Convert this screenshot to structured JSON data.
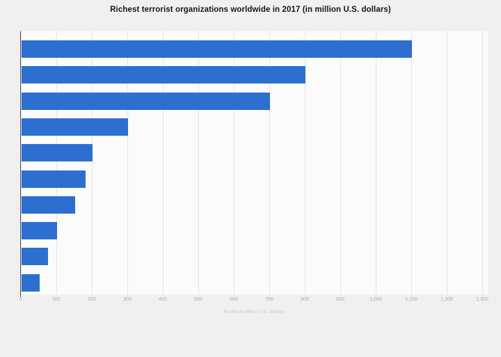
{
  "page": {
    "background_color": "#f0f0f1"
  },
  "chart_data": {
    "type": "bar",
    "orientation": "horizontal",
    "title": "Richest terrorist organizations worldwide in 2017 (in million U.S. dollars)",
    "xlabel": "Funds in million U.S. dollars",
    "ylabel": "",
    "category_labels_visible": false,
    "categories": [
      "",
      "",
      "",
      "",
      "",
      "",
      "",
      "",
      "",
      ""
    ],
    "values": [
      1100,
      800,
      700,
      300,
      200,
      180,
      150,
      100,
      75,
      50
    ],
    "xlim": [
      0,
      1300
    ],
    "x_ticks": [
      "0",
      "100",
      "200",
      "300",
      "400",
      "500",
      "600",
      "700",
      "800",
      "900",
      "1,000",
      "1,100",
      "1,200",
      "1,300"
    ],
    "grid": "vertical",
    "legend": "none",
    "bar_color": "#2d6fd1",
    "axis_line_color": "#4f4f52",
    "gridline_color": "#e3e3e5"
  }
}
